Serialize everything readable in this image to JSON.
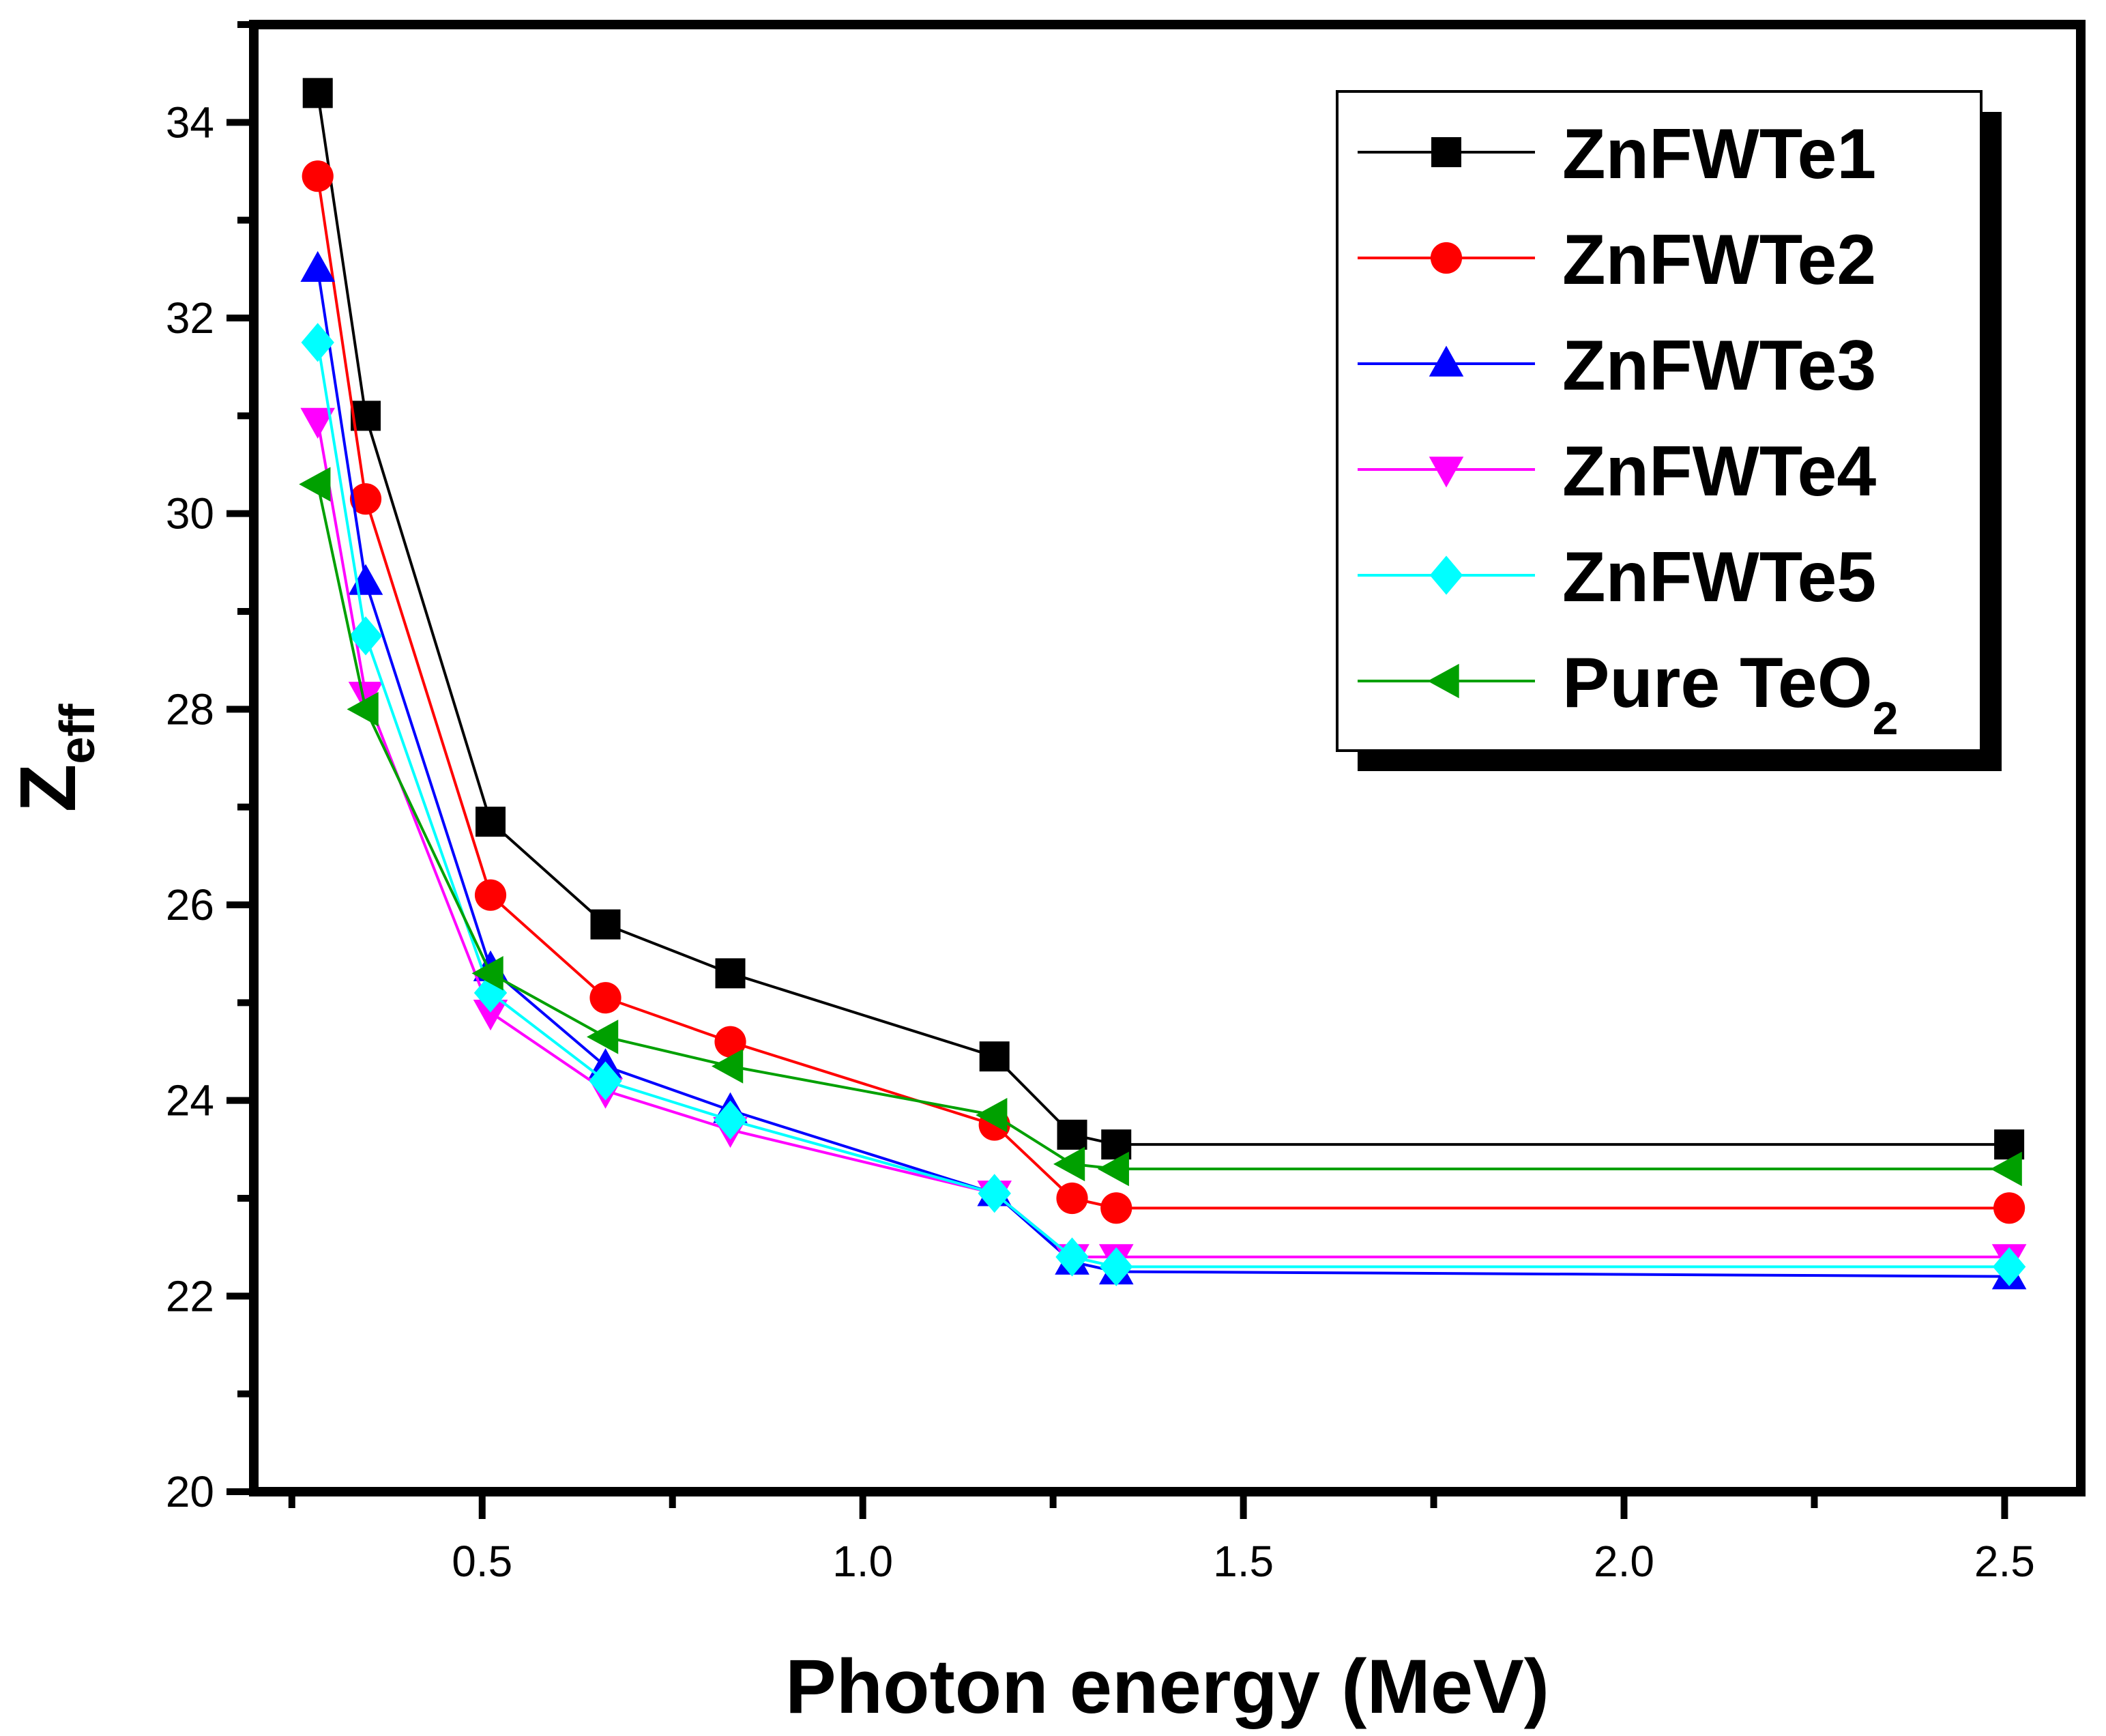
{
  "chart_data": {
    "type": "line",
    "xlabel": "Photon energy (MeV)",
    "ylabel": {
      "main": "Z",
      "subscript": "eff"
    },
    "xlim": [
      0.2,
      2.6
    ],
    "ylim": [
      20,
      35
    ],
    "xticks": [
      0.5,
      1.0,
      1.5,
      2.0,
      2.5
    ],
    "xtick_labels": [
      "0.5",
      "1.0",
      "1.5",
      "2.0",
      "2.5"
    ],
    "yticks": [
      20,
      22,
      24,
      26,
      28,
      30,
      32,
      34
    ],
    "ytick_labels": [
      "20",
      "22",
      "24",
      "26",
      "28",
      "30",
      "32",
      "34"
    ],
    "legend_position": "top-right",
    "x": [
      0.284,
      0.347,
      0.511,
      0.662,
      0.826,
      1.173,
      1.275,
      1.333,
      2.506
    ],
    "series": [
      {
        "name": "ZnFWTe1",
        "color": "#000000",
        "marker": "square",
        "values": [
          34.3,
          31.0,
          26.85,
          25.8,
          25.3,
          24.45,
          23.65,
          23.55,
          23.55
        ]
      },
      {
        "name": "ZnFWTe2",
        "color": "#ff0000",
        "marker": "circle",
        "values": [
          33.45,
          30.15,
          26.1,
          25.05,
          24.6,
          23.75,
          23.0,
          22.9,
          22.9
        ]
      },
      {
        "name": "ZnFWTe3",
        "color": "#0000ff",
        "marker": "triangle-up",
        "values": [
          32.5,
          29.3,
          25.35,
          24.35,
          23.9,
          23.05,
          22.35,
          22.25,
          22.2
        ]
      },
      {
        "name": "ZnFWTe4",
        "color": "#ff00ff",
        "marker": "triangle-down",
        "values": [
          30.95,
          28.15,
          24.9,
          24.1,
          23.7,
          23.05,
          22.4,
          22.4,
          22.4
        ]
      },
      {
        "name": "ZnFWTe5",
        "color": "#00ffff",
        "marker": "diamond",
        "values": [
          31.75,
          28.75,
          25.1,
          24.2,
          23.8,
          23.05,
          22.4,
          22.3,
          22.3
        ]
      },
      {
        "name": "Pure TeO",
        "name_subscript": "2",
        "color": "#00a000",
        "marker": "triangle-left",
        "values": [
          30.3,
          28.0,
          25.3,
          24.65,
          24.35,
          23.85,
          23.35,
          23.3,
          23.3
        ]
      }
    ]
  }
}
